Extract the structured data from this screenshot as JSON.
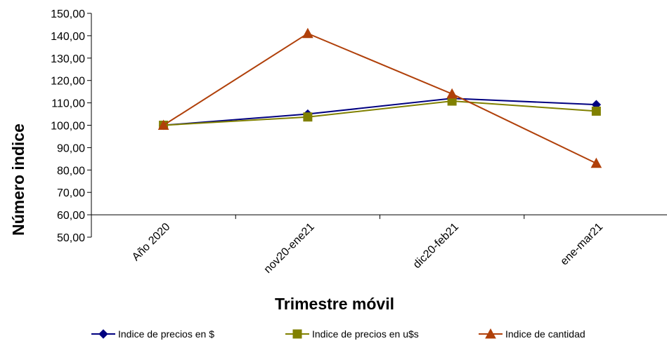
{
  "chart_data": {
    "type": "line",
    "title": "",
    "xlabel": "Trimestre móvil",
    "ylabel": "Número indice",
    "categories": [
      "Año 2020",
      "nov20-ene21",
      "dic20-feb21",
      "ene-mar21"
    ],
    "ylim": [
      50,
      150
    ],
    "yticks": [
      "50,00",
      "60,00",
      "70,00",
      "80,00",
      "90,00",
      "100,00",
      "110,00",
      "120,00",
      "130,00",
      "140,00",
      "150,00"
    ],
    "grid": false,
    "legend_position": "bottom",
    "series": [
      {
        "name": "Indice de precios en $",
        "values": [
          100,
          105,
          112,
          109.2
        ],
        "color": "#000080",
        "marker": "diamond"
      },
      {
        "name": "Indice de precios en u$s",
        "values": [
          100,
          103.7,
          110.8,
          106.3
        ],
        "color": "#808000",
        "marker": "square"
      },
      {
        "name": "Indice de cantidad",
        "values": [
          100,
          141,
          114,
          83
        ],
        "color": "#B0400A",
        "marker": "triangle"
      }
    ]
  }
}
